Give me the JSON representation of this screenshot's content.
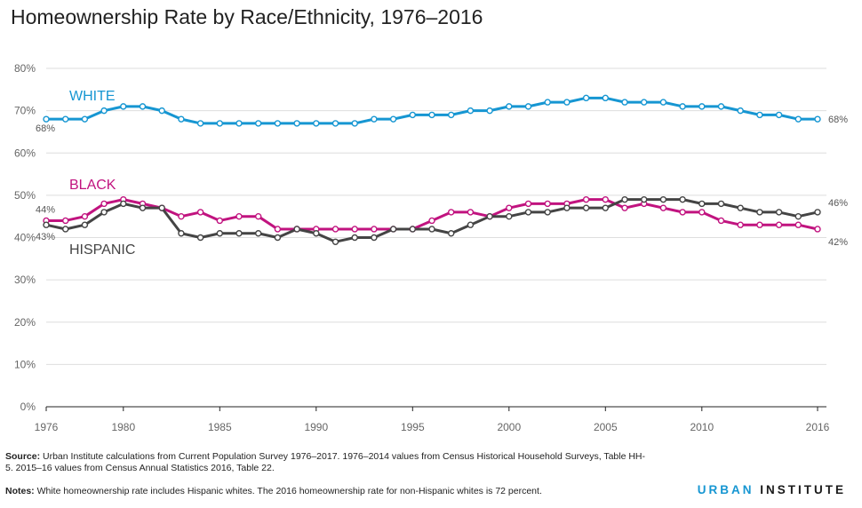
{
  "title": "Homeownership Rate by Race/Ethnicity, 1976–2016",
  "chart_data": {
    "type": "line",
    "title": "Homeownership Rate by Race/Ethnicity, 1976–2016",
    "x": [
      1976,
      1977,
      1978,
      1979,
      1980,
      1981,
      1982,
      1983,
      1984,
      1985,
      1986,
      1987,
      1988,
      1989,
      1990,
      1991,
      1992,
      1993,
      1994,
      1995,
      1996,
      1997,
      1998,
      1999,
      2000,
      2001,
      2002,
      2003,
      2004,
      2005,
      2006,
      2007,
      2008,
      2009,
      2010,
      2011,
      2012,
      2013,
      2014,
      2015,
      2016
    ],
    "xlim": [
      1976,
      2016
    ],
    "xticks": [
      1976,
      1980,
      1985,
      1990,
      1995,
      2000,
      2005,
      2010,
      2016
    ],
    "ylim": [
      0,
      80
    ],
    "yticks": [
      0,
      10,
      20,
      30,
      40,
      50,
      60,
      70,
      80
    ],
    "ytick_labels": [
      "0%",
      "10%",
      "20%",
      "30%",
      "40%",
      "50%",
      "60%",
      "70%",
      "80%"
    ],
    "grid": "horizontal",
    "series": [
      {
        "name": "WHITE",
        "color": "#1696d2",
        "values": [
          68,
          68,
          68,
          70,
          71,
          71,
          70,
          68,
          67,
          67,
          67,
          67,
          67,
          67,
          67,
          67,
          67,
          68,
          68,
          69,
          69,
          69,
          70,
          70,
          71,
          71,
          72,
          72,
          73,
          73,
          72,
          72,
          72,
          71,
          71,
          71,
          70,
          69,
          69,
          68,
          68
        ],
        "start_label": "68%",
        "end_label": "68%"
      },
      {
        "name": "BLACK",
        "color": "#c1137f",
        "values": [
          44,
          44,
          45,
          48,
          49,
          48,
          47,
          45,
          46,
          44,
          45,
          45,
          42,
          42,
          42,
          42,
          42,
          42,
          42,
          42,
          44,
          46,
          46,
          45,
          47,
          48,
          48,
          48,
          49,
          49,
          47,
          48,
          47,
          46,
          46,
          44,
          43,
          43,
          43,
          43,
          42
        ],
        "start_label": "44%",
        "end_label": "42%"
      },
      {
        "name": "HISPANIC",
        "color": "#444444",
        "values": [
          43,
          42,
          43,
          46,
          48,
          47,
          47,
          41,
          40,
          41,
          41,
          41,
          40,
          42,
          41,
          39,
          40,
          40,
          42,
          42,
          42,
          41,
          43,
          45,
          45,
          46,
          46,
          47,
          47,
          47,
          49,
          49,
          49,
          49,
          48,
          48,
          47,
          46,
          46,
          45,
          46
        ],
        "start_label": "43%",
        "end_label": "46%"
      }
    ]
  },
  "footer": {
    "source_label": "Source:",
    "source_text": " Urban Institute calculations from Current Population Survey 1976–2017. 1976–2014 values from Census Historical Household Surveys, Table HH-5. 2015–16 values from Census Annual Statistics 2016, Table 22.",
    "notes_label": "Notes:",
    "notes_text": " White homeownership rate includes Hispanic whites. The 2016 homeownership rate for non-Hispanic whites is 72 percent.",
    "brand_first": "URBAN",
    "brand_second": " INSTITUTE"
  }
}
